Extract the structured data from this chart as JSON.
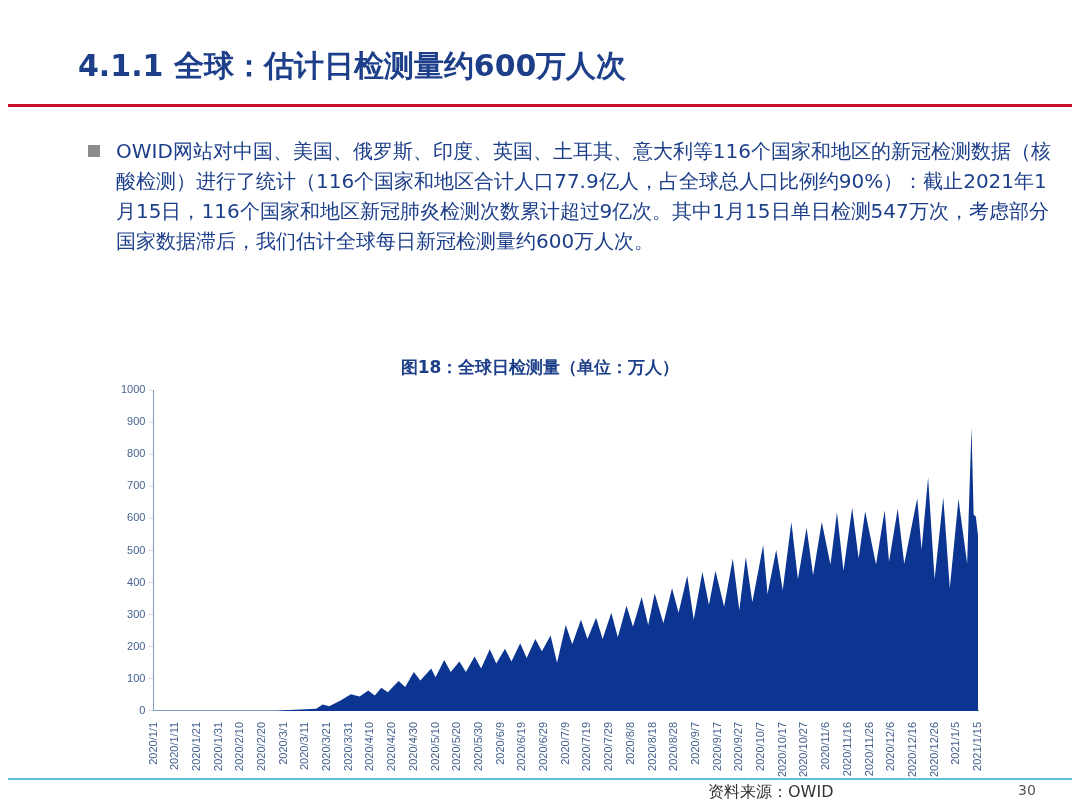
{
  "chart_data": {
    "type": "area",
    "title": "4.1.1 全球：估计日检测量约600万人次",
    "subtitle": "OWID网站对中国、美国、俄罗斯、印度、英国、土耳其、意大利等116个国家和地区的新冠检测数据（核酸检测）进行了统计（116个国家和地区合计人口77.9亿人，占全球总人口比例约90%）：截止2021年1月15日，116个国家和地区新冠肺炎检测次数累计超过9亿次。其中1月15日单日检测547万次，考虑部分国家数据滞后，我们估计全球每日新冠检测量约600万人次。",
    "annotations": [
      "图18：全球日检测量（单位：万人）",
      "资料来源：OWID",
      "30"
    ],
    "marker": "none",
    "x": [
      "2020-01-01",
      "2020-02-27",
      "2020-03-01",
      "2020-03-11",
      "2020-03-16",
      "2020-03-19",
      "2020-03-22",
      "2020-03-27",
      "2020-04-01",
      "2020-04-05",
      "2020-04-09",
      "2020-04-12",
      "2020-04-15",
      "2020-04-18",
      "2020-04-23",
      "2020-04-26",
      "2020-04-30",
      "2020-05-03",
      "2020-05-08",
      "2020-05-10",
      "2020-05-14",
      "2020-05-17",
      "2020-05-21",
      "2020-05-24",
      "2020-05-28",
      "2020-05-31",
      "2020-06-04",
      "2020-06-07",
      "2020-06-11",
      "2020-06-14",
      "2020-06-18",
      "2020-06-21",
      "2020-06-25",
      "2020-06-28",
      "2020-07-02",
      "2020-07-05",
      "2020-07-09",
      "2020-07-12",
      "2020-07-16",
      "2020-07-19",
      "2020-07-23",
      "2020-07-26",
      "2020-07-30",
      "2020-08-02",
      "2020-08-06",
      "2020-08-09",
      "2020-08-13",
      "2020-08-16",
      "2020-08-19",
      "2020-08-23",
      "2020-08-27",
      "2020-08-30",
      "2020-09-03",
      "2020-09-06",
      "2020-09-10",
      "2020-09-13",
      "2020-09-16",
      "2020-09-20",
      "2020-09-24",
      "2020-09-27",
      "2020-09-30",
      "2020-10-03",
      "2020-10-08",
      "2020-10-10",
      "2020-10-14",
      "2020-10-17",
      "2020-10-21",
      "2020-10-24",
      "2020-10-28",
      "2020-10-31",
      "2020-11-04",
      "2020-11-08",
      "2020-11-11",
      "2020-11-14",
      "2020-11-18",
      "2020-11-21",
      "2020-11-24",
      "2020-11-29",
      "2020-12-03",
      "2020-12-05",
      "2020-12-09",
      "2020-12-12",
      "2020-12-18",
      "2020-12-20",
      "2020-12-23",
      "2020-12-26",
      "2020-12-30",
      "2021-01-02",
      "2021-01-06",
      "2021-01-10",
      "2021-01-12",
      "2021-01-13",
      "2021-01-14",
      "2021-01-15"
    ],
    "series": [
      {
        "color": "#0b3591",
        "values": [
          0,
          0,
          2,
          5,
          7,
          20,
          15,
          32,
          52,
          45,
          64,
          48,
          72,
          58,
          93,
          75,
          121,
          95,
          132,
          105,
          159,
          121,
          154,
          121,
          170,
          132,
          192,
          148,
          194,
          154,
          211,
          165,
          224,
          186,
          235,
          150,
          268,
          208,
          284,
          224,
          290,
          224,
          306,
          230,
          328,
          262,
          355,
          268,
          366,
          273,
          382,
          306,
          421,
          284,
          434,
          330,
          437,
          325,
          475,
          314,
          480,
          339,
          517,
          364,
          502,
          377,
          589,
          410,
          571,
          423,
          589,
          456,
          619,
          437,
          633,
          475,
          622,
          456,
          625,
          465,
          630,
          459,
          663,
          502,
          728,
          410,
          666,
          382,
          660,
          459,
          883,
          611,
          606,
          547
        ]
      }
    ],
    "xlim": [
      "2020-01-01",
      "2021-01-15"
    ],
    "xticks": [
      {
        "value": "2020-01-01",
        "label": "2020/1/1"
      },
      {
        "value": "2020-01-11",
        "label": "2020/1/11"
      },
      {
        "value": "2020-01-21",
        "label": "2020/1/21"
      },
      {
        "value": "2020-01-31",
        "label": "2020/1/31"
      },
      {
        "value": "2020-02-10",
        "label": "2020/2/10"
      },
      {
        "value": "2020-02-20",
        "label": "2020/2/20"
      },
      {
        "value": "2020-03-01",
        "label": "2020/3/1"
      },
      {
        "value": "2020-03-11",
        "label": "2020/3/11"
      },
      {
        "value": "2020-03-21",
        "label": "2020/3/21"
      },
      {
        "value": "2020-03-31",
        "label": "2020/3/31"
      },
      {
        "value": "2020-04-10",
        "label": "2020/4/10"
      },
      {
        "value": "2020-04-20",
        "label": "2020/4/20"
      },
      {
        "value": "2020-04-30",
        "label": "2020/4/30"
      },
      {
        "value": "2020-05-10",
        "label": "2020/5/10"
      },
      {
        "value": "2020-05-20",
        "label": "2020/5/20"
      },
      {
        "value": "2020-05-30",
        "label": "2020/5/30"
      },
      {
        "value": "2020-06-09",
        "label": "2020/6/9"
      },
      {
        "value": "2020-06-19",
        "label": "2020/6/19"
      },
      {
        "value": "2020-06-29",
        "label": "2020/6/29"
      },
      {
        "value": "2020-07-09",
        "label": "2020/7/9"
      },
      {
        "value": "2020-07-19",
        "label": "2020/7/19"
      },
      {
        "value": "2020-07-29",
        "label": "2020/7/29"
      },
      {
        "value": "2020-08-08",
        "label": "2020/8/8"
      },
      {
        "value": "2020-08-18",
        "label": "2020/8/18"
      },
      {
        "value": "2020-08-28",
        "label": "2020/8/28"
      },
      {
        "value": "2020-09-07",
        "label": "2020/9/7"
      },
      {
        "value": "2020-09-17",
        "label": "2020/9/17"
      },
      {
        "value": "2020-09-27",
        "label": "2020/9/27"
      },
      {
        "value": "2020-10-07",
        "label": "2020/10/7"
      },
      {
        "value": "2020-10-17",
        "label": "2020/10/17"
      },
      {
        "value": "2020-10-27",
        "label": "2020/10/27"
      },
      {
        "value": "2020-11-06",
        "label": "2020/11/6"
      },
      {
        "value": "2020-11-16",
        "label": "2020/11/16"
      },
      {
        "value": "2020-11-26",
        "label": "2020/11/26"
      },
      {
        "value": "2020-12-06",
        "label": "2020/12/6"
      },
      {
        "value": "2020-12-16",
        "label": "2020/12/16"
      },
      {
        "value": "2020-12-26",
        "label": "2020/12/26"
      },
      {
        "value": "2021-01-05",
        "label": "2021/1/5"
      },
      {
        "value": "2021-01-15",
        "label": "2021/1/15"
      }
    ],
    "ylim": [
      0,
      1000
    ],
    "yticks": [
      0,
      100,
      200,
      300,
      400,
      500,
      600,
      700,
      800,
      900,
      1000
    ]
  }
}
